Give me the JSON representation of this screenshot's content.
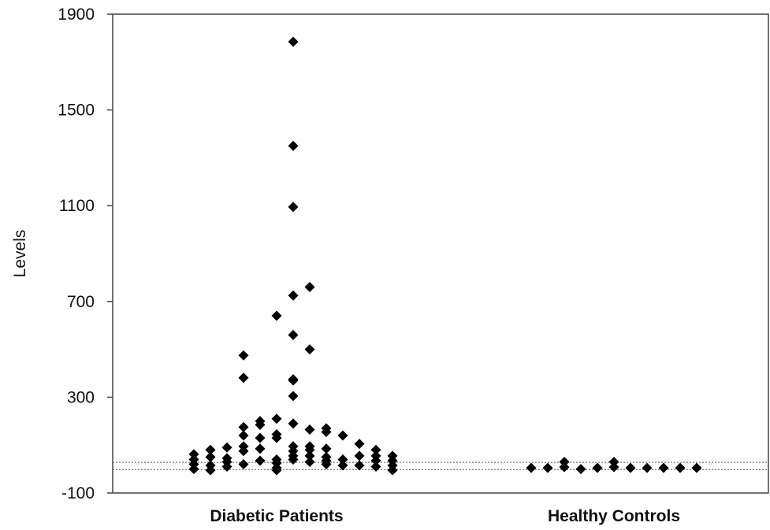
{
  "chart_data": {
    "type": "scatter",
    "title": "",
    "xlabel": "",
    "ylabel": "Levels",
    "ylim": [
      -100,
      1900
    ],
    "yticks": [
      "-100",
      "300",
      "700",
      "1100",
      "1500",
      "1900"
    ],
    "categories": [
      "Diabetic Patients",
      "Healthy Controls"
    ],
    "reference_lines": [
      28,
      -2
    ],
    "grid": false,
    "marker_color": "#000000",
    "groups": [
      {
        "category": "Diabetic Patients",
        "points": [
          {
            "x": -5,
            "y": 0
          },
          {
            "x": -5,
            "y": 20
          },
          {
            "x": -5,
            "y": 40
          },
          {
            "x": -5,
            "y": 62
          },
          {
            "x": -4,
            "y": -5
          },
          {
            "x": -4,
            "y": 15
          },
          {
            "x": -4,
            "y": 50
          },
          {
            "x": -4,
            "y": 80
          },
          {
            "x": -3,
            "y": 10
          },
          {
            "x": -3,
            "y": 30
          },
          {
            "x": -3,
            "y": 45
          },
          {
            "x": -3,
            "y": 90
          },
          {
            "x": -2,
            "y": 20
          },
          {
            "x": -2,
            "y": 75
          },
          {
            "x": -2,
            "y": 95
          },
          {
            "x": -2,
            "y": 140
          },
          {
            "x": -2,
            "y": 175
          },
          {
            "x": -2,
            "y": 381
          },
          {
            "x": -2,
            "y": 475
          },
          {
            "x": -1,
            "y": 35
          },
          {
            "x": -1,
            "y": 85
          },
          {
            "x": -1,
            "y": 130
          },
          {
            "x": -1,
            "y": 185
          },
          {
            "x": -1,
            "y": 200
          },
          {
            "x": 0,
            "y": -5
          },
          {
            "x": 0,
            "y": 5
          },
          {
            "x": 0,
            "y": 25
          },
          {
            "x": 0,
            "y": 40
          },
          {
            "x": 0,
            "y": 130
          },
          {
            "x": 0,
            "y": 145
          },
          {
            "x": 0,
            "y": 210
          },
          {
            "x": 0,
            "y": 640
          },
          {
            "x": 1,
            "y": 40
          },
          {
            "x": 1,
            "y": 55
          },
          {
            "x": 1,
            "y": 75
          },
          {
            "x": 1,
            "y": 95
          },
          {
            "x": 1,
            "y": 190
          },
          {
            "x": 1,
            "y": 305
          },
          {
            "x": 1,
            "y": 370
          },
          {
            "x": 1,
            "y": 375
          },
          {
            "x": 1,
            "y": 560
          },
          {
            "x": 1,
            "y": 725
          },
          {
            "x": 1,
            "y": 1095
          },
          {
            "x": 1,
            "y": 1350
          },
          {
            "x": 1,
            "y": 1785
          },
          {
            "x": 2,
            "y": 30
          },
          {
            "x": 2,
            "y": 55
          },
          {
            "x": 2,
            "y": 80
          },
          {
            "x": 2,
            "y": 95
          },
          {
            "x": 2,
            "y": 165
          },
          {
            "x": 2,
            "y": 500
          },
          {
            "x": 2,
            "y": 760
          },
          {
            "x": 3,
            "y": 20
          },
          {
            "x": 3,
            "y": 35
          },
          {
            "x": 3,
            "y": 50
          },
          {
            "x": 3,
            "y": 85
          },
          {
            "x": 3,
            "y": 155
          },
          {
            "x": 3,
            "y": 170
          },
          {
            "x": 4,
            "y": 15
          },
          {
            "x": 4,
            "y": 40
          },
          {
            "x": 4,
            "y": 140
          },
          {
            "x": 5,
            "y": 15
          },
          {
            "x": 5,
            "y": 55
          },
          {
            "x": 5,
            "y": 105
          },
          {
            "x": 6,
            "y": 10
          },
          {
            "x": 6,
            "y": 35
          },
          {
            "x": 6,
            "y": 55
          },
          {
            "x": 6,
            "y": 80
          },
          {
            "x": 7,
            "y": -5
          },
          {
            "x": 7,
            "y": 15
          },
          {
            "x": 7,
            "y": 35
          },
          {
            "x": 7,
            "y": 55
          }
        ]
      },
      {
        "category": "Healthy Controls",
        "points": [
          {
            "x": -5,
            "y": 5
          },
          {
            "x": -4,
            "y": 5
          },
          {
            "x": -3,
            "y": 8
          },
          {
            "x": -3,
            "y": 30
          },
          {
            "x": -2,
            "y": 0
          },
          {
            "x": -1,
            "y": 5
          },
          {
            "x": 0,
            "y": 8
          },
          {
            "x": 0,
            "y": 30
          },
          {
            "x": 1,
            "y": 5
          },
          {
            "x": 2,
            "y": 5
          },
          {
            "x": 3,
            "y": 5
          },
          {
            "x": 4,
            "y": 5
          },
          {
            "x": 5,
            "y": 5
          }
        ]
      }
    ]
  }
}
